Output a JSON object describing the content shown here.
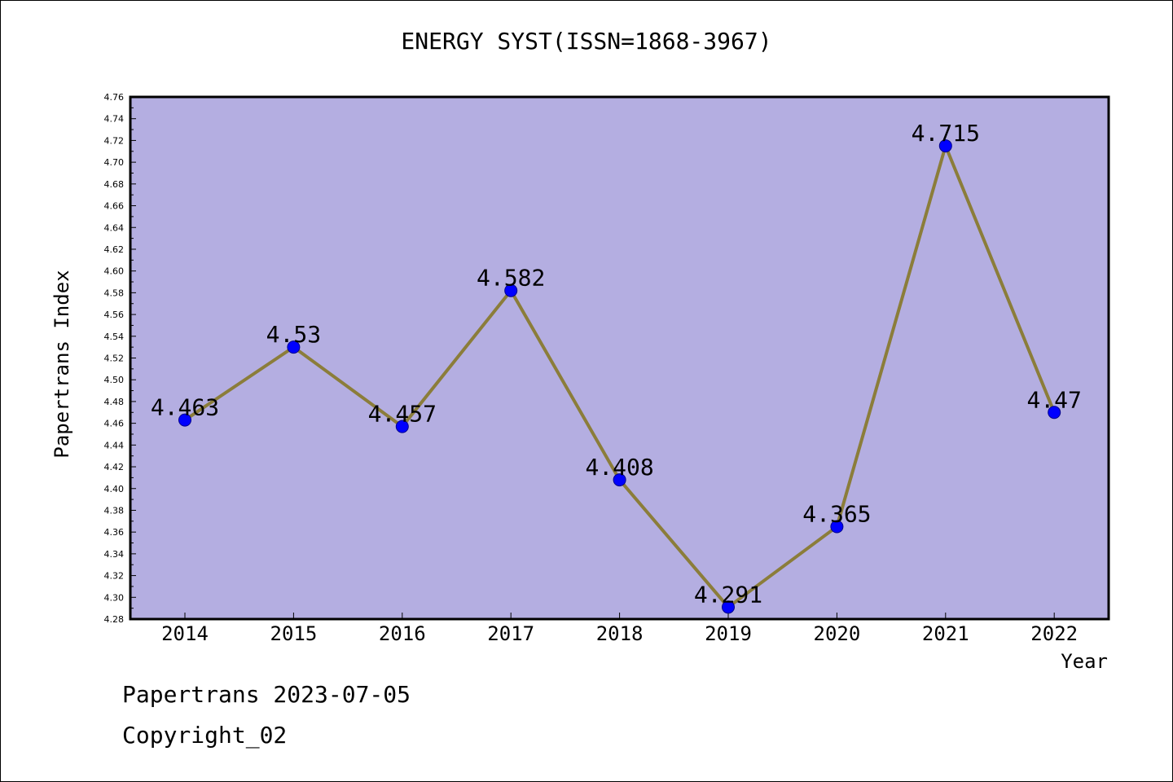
{
  "chart_data": {
    "type": "line",
    "title": "ENERGY SYST(ISSN=1868-3967)",
    "xlabel": "Year",
    "ylabel": "Papertrans Index",
    "categories": [
      "2014",
      "2015",
      "2016",
      "2017",
      "2018",
      "2019",
      "2020",
      "2021",
      "2022"
    ],
    "series": [
      {
        "values": [
          4.463,
          4.53,
          4.457,
          4.582,
          4.408,
          4.291,
          4.365,
          4.715,
          4.47
        ],
        "labels": [
          "4.463",
          "4.53",
          "4.457",
          "4.582",
          "4.408",
          "4.291",
          "4.365",
          "4.715",
          "4.47"
        ]
      }
    ],
    "ylim": [
      4.28,
      4.76
    ],
    "ytick_step": 0.02,
    "grid": false,
    "colors": {
      "plot_background": "#b4aee1",
      "line": "#8b7d3a",
      "marker": "#0000ff",
      "marker_edge": "#00008b",
      "axis": "#000000"
    }
  },
  "footer": {
    "line1": "Papertrans 2023-07-05",
    "line2": "Copyright_02"
  }
}
